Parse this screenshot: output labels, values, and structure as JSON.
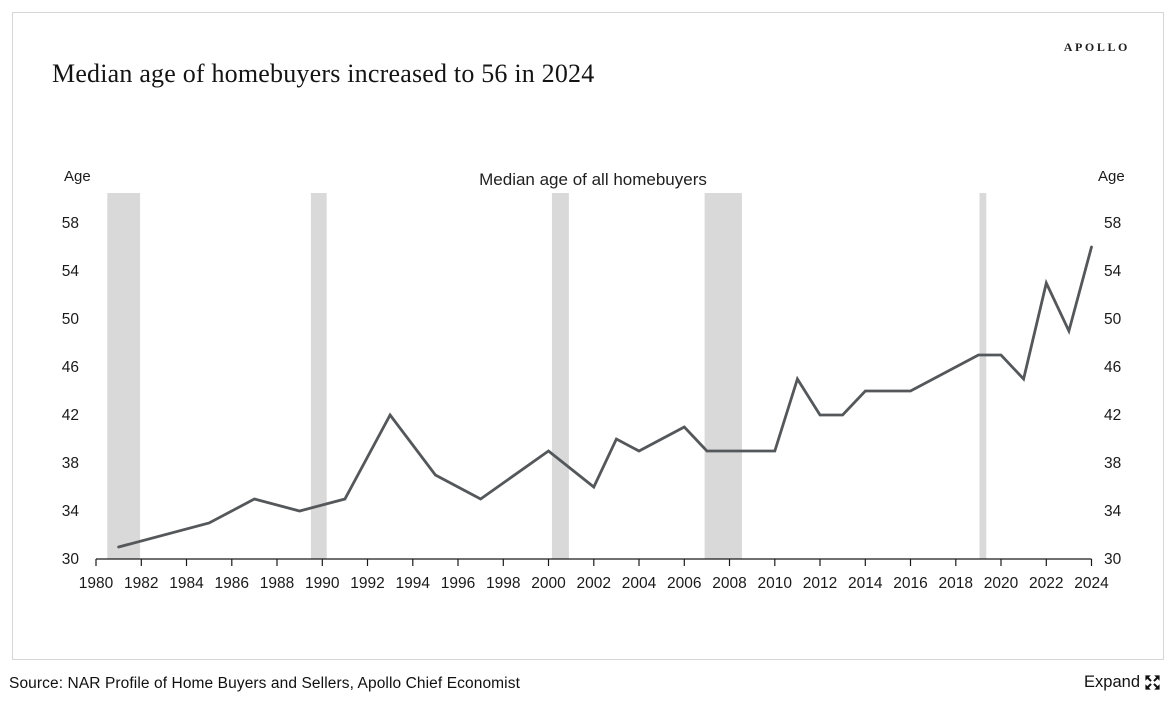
{
  "brand": {
    "logo_text": "APOLLO"
  },
  "header": {
    "title": "Median age of homebuyers increased to 56 in 2024"
  },
  "chart_data": {
    "type": "line",
    "title": "Median age of all homebuyers",
    "xlabel": "",
    "ylabel_left": "Age",
    "ylabel_right": "Age",
    "xlim": [
      1980,
      2024
    ],
    "ylim": [
      30,
      60.5
    ],
    "x_ticks": [
      1980,
      1982,
      1984,
      1986,
      1988,
      1990,
      1992,
      1994,
      1996,
      1998,
      2000,
      2002,
      2004,
      2006,
      2008,
      2010,
      2012,
      2014,
      2016,
      2018,
      2020,
      2022,
      2024
    ],
    "y_ticks": [
      30,
      34,
      38,
      42,
      46,
      50,
      54,
      58
    ],
    "grid": false,
    "legend_position": "none",
    "series": [
      {
        "name": "Median age of all homebuyers",
        "color": "#54585b",
        "points": [
          [
            1981,
            31
          ],
          [
            1985,
            33
          ],
          [
            1987,
            35
          ],
          [
            1989,
            34
          ],
          [
            1991,
            35
          ],
          [
            1993,
            42
          ],
          [
            1995,
            37
          ],
          [
            1997,
            35
          ],
          [
            2000,
            39
          ],
          [
            2002,
            36
          ],
          [
            2003,
            40
          ],
          [
            2004,
            39
          ],
          [
            2006,
            41
          ],
          [
            2007,
            39
          ],
          [
            2010,
            39
          ],
          [
            2011,
            45
          ],
          [
            2012,
            42
          ],
          [
            2013,
            42
          ],
          [
            2014,
            44
          ],
          [
            2016,
            44
          ],
          [
            2019,
            47
          ],
          [
            2020,
            47
          ],
          [
            2021,
            45
          ],
          [
            2022,
            53
          ],
          [
            2023,
            49
          ],
          [
            2024,
            56
          ]
        ]
      }
    ],
    "recession_bands": {
      "color": "#d9d9d9",
      "year_ranges": [
        [
          1980.5,
          1981.95
        ],
        [
          1989.5,
          1990.2
        ],
        [
          2000.15,
          2000.9
        ],
        [
          2006.9,
          2008.55
        ],
        [
          2019.05,
          2019.35
        ]
      ]
    },
    "axis_color": "#1a1a1a",
    "tick_label_color": "#1a1a1a"
  },
  "footer": {
    "source": "Source: NAR Profile of Home Buyers and Sellers, Apollo Chief Economist",
    "expand_label": "Expand"
  }
}
